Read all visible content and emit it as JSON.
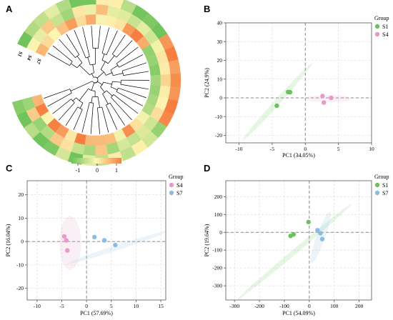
{
  "chart_data": [
    {
      "panel": "A",
      "type": "heatmap",
      "colorbar": {
        "ticks": [
          "-1",
          "0",
          "1"
        ],
        "colors": [
          "#71c45c",
          "#fdf5b2",
          "#f57f40"
        ]
      },
      "sample_labels": [
        "S7",
        "S4",
        "S1"
      ]
    },
    {
      "panel": "B",
      "type": "scatter",
      "xlabel": "PC1 (34.05%)",
      "ylabel": "PC2 (24.9%)",
      "xlim": [
        -12,
        10
      ],
      "ylim": [
        -24,
        40
      ],
      "xticks": [
        -10,
        -5,
        0,
        5,
        10
      ],
      "yticks": [
        -20,
        -10,
        0,
        10,
        20,
        30,
        40
      ],
      "grid": true,
      "legend": {
        "title": "Group",
        "placement": "right-top"
      },
      "series": [
        {
          "name": "S1",
          "color": "#6cc05f",
          "points": [
            [
              -4.3,
              -4.2
            ],
            [
              -2.6,
              3.1
            ],
            [
              -2.3,
              3.0
            ]
          ],
          "ellipse": {
            "cx": -4.2,
            "cy": -2.1,
            "rx": 7.8,
            "ry": 1.5,
            "angle": 48
          }
        },
        {
          "name": "S4",
          "color": "#e79ac9",
          "points": [
            [
              2.6,
              1.0
            ],
            [
              2.8,
              -2.5
            ],
            [
              3.9,
              0.0
            ]
          ],
          "ellipse": {
            "cx": 3.4,
            "cy": -0.4,
            "rx": 3.6,
            "ry": 1.9,
            "angle": 0
          }
        }
      ]
    },
    {
      "panel": "C",
      "type": "scatter",
      "xlabel": "PC1 (57.69%)",
      "ylabel": "PC2 (16.04%)",
      "xlim": [
        -12,
        16
      ],
      "ylim": [
        -25,
        26
      ],
      "xticks": [
        -10,
        -5,
        0,
        5,
        10,
        15
      ],
      "yticks": [
        -20,
        -10,
        0,
        10,
        20
      ],
      "grid": true,
      "legend": {
        "title": "Group",
        "placement": "right-top"
      },
      "series": [
        {
          "name": "S4",
          "color": "#e79ac9",
          "points": [
            [
              -4.5,
              2.2
            ],
            [
              -4.1,
              0.5
            ],
            [
              -3.9,
              -3.8
            ]
          ],
          "ellipse": {
            "cx": -3.3,
            "cy": -0.6,
            "rx": 2.2,
            "ry": 11.5,
            "angle": 0
          }
        },
        {
          "name": "S7",
          "color": "#89bde2",
          "points": [
            [
              1.6,
              1.9
            ],
            [
              3.6,
              0.5
            ],
            [
              5.8,
              -1.5
            ]
          ],
          "ellipse": {
            "cx": 6.2,
            "cy": -2.6,
            "rx": 10.5,
            "ry": 1.1,
            "angle": 18
          }
        }
      ]
    },
    {
      "panel": "D",
      "type": "scatter",
      "xlabel": "PC1 (54.09%)",
      "ylabel": "PC2 (19.64%)",
      "xlim": [
        -335,
        250
      ],
      "ylim": [
        -380,
        290
      ],
      "xticks": [
        -300,
        -200,
        -100,
        0,
        100,
        200
      ],
      "yticks": [
        -300,
        -200,
        -100,
        0,
        100,
        200
      ],
      "grid": true,
      "legend": {
        "title": "Group",
        "placement": "right-top"
      },
      "series": [
        {
          "name": "S1",
          "color": "#6cc05f",
          "points": [
            [
              -75,
              -20
            ],
            [
              -63,
              -12
            ],
            [
              -3,
              58
            ]
          ],
          "ellipse": {
            "cx": -60,
            "cy": -110,
            "rx": 300,
            "ry": 14,
            "angle": 40
          }
        },
        {
          "name": "S7",
          "color": "#89bde2",
          "points": [
            [
              33,
              12
            ],
            [
              45,
              -5
            ],
            [
              52,
              -38
            ]
          ],
          "ellipse": {
            "cx": 45,
            "cy": -30,
            "rx": 110,
            "ry": 24,
            "angle": 70
          }
        }
      ]
    }
  ]
}
